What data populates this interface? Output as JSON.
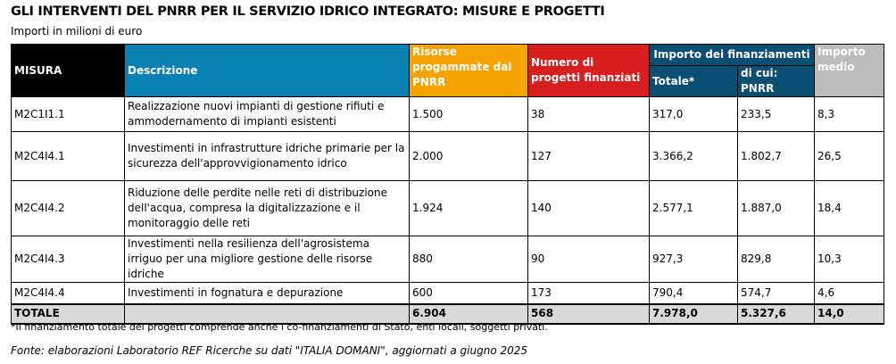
{
  "title": "GLI INTERVENTI DEL PNRR PER IL SERVIZIO IDRICO INTEGRATO: MISURE E PROGETTI",
  "subtitle": "Importi in milioni di euro",
  "headers": {
    "misura": "MISURA",
    "descrizione": "Descrizione",
    "risorse": "Risorse progammate dal PNRR",
    "numero": "Numero di progetti finanziati",
    "importo": "Importo dei finanziamenti",
    "totale": "Totale*",
    "pnrr": "di cui: PNRR",
    "medio": "Importo medio"
  },
  "rows": [
    {
      "misura": "M2C1I1.1",
      "descrizione": "Realizzazione nuovi impianti di gestione rifiuti e ammodernamento di impianti esistenti",
      "risorse": "1.500",
      "numero": "38",
      "totale": "317,0",
      "pnrr": "233,5",
      "medio": "8,3"
    },
    {
      "misura": "M2C4I4.1",
      "descrizione": "Investimenti in infrastrutture idriche primarie per la sicurezza dell'approvvigionamento idrico",
      "risorse": "2.000",
      "numero": "127",
      "totale": "3.366,2",
      "pnrr": "1.802,7",
      "medio": "26,5"
    },
    {
      "misura": "M2C4I4.2",
      "descrizione": "Riduzione delle perdite nelle reti di distribuzione dell'acqua, compresa la digitalizzazione e il monitoraggio delle reti",
      "risorse": "1.924",
      "numero": "140",
      "totale": "2.577,1",
      "pnrr": "1.887,0",
      "medio": "18,4"
    },
    {
      "misura": "M2C4I4.3",
      "descrizione": "Investimenti nella resilienza dell'agrosistema irriguo per una migliore gestione delle risorse idriche",
      "risorse": "880",
      "numero": "90",
      "totale": "927,3",
      "pnrr": "829,8",
      "medio": "10,3"
    },
    {
      "misura": "M2C4I4.4",
      "descrizione": "Investimenti in fognatura e depurazione",
      "risorse": "600",
      "numero": "173",
      "totale": "790,4",
      "pnrr": "574,7",
      "medio": "4,6"
    }
  ],
  "total": {
    "label": "TOTALE",
    "risorse": "6.904",
    "numero": "568",
    "totale": "7.978,0",
    "pnrr": "5.327,6",
    "medio": "14,0"
  },
  "note": "*Il finanziamento totale dei progetti comprende anche i co-finanziamenti di Stato, enti locali, soggetti privati.",
  "source": "Fonte: elaborazioni Laboratorio REF Ricerche su dati \"ITALIA DOMANI\", aggiornati a giugno 2025"
}
